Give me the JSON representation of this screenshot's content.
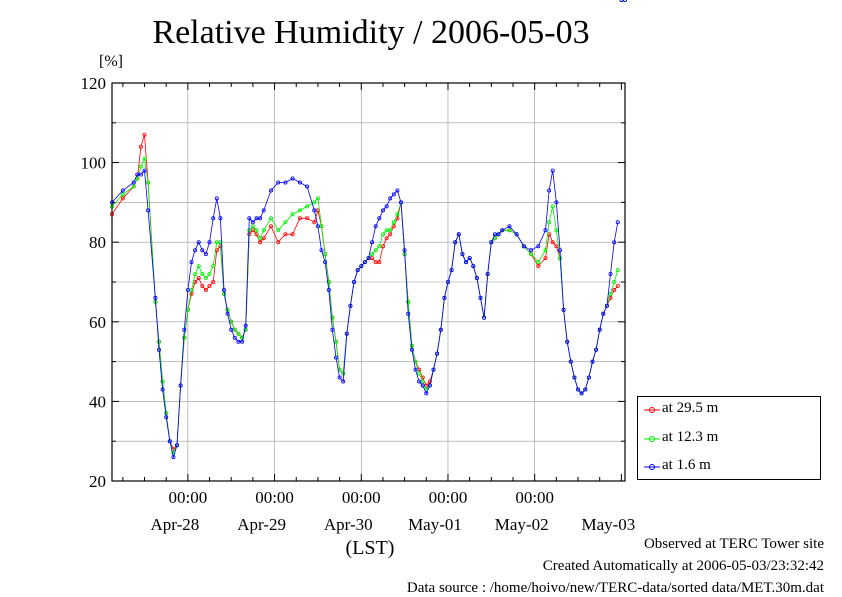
{
  "chart_data": {
    "type": "line",
    "title": "Relative Humidity / 2006-05-03",
    "y_unit": "[%]",
    "x_unit": "(LST)",
    "ylim": [
      20,
      120
    ],
    "y_ticks": [
      20,
      40,
      60,
      80,
      100,
      120
    ],
    "x_range_hours": [
      0,
      142
    ],
    "time_labels": [
      {
        "hour": 21,
        "label": "00:00"
      },
      {
        "hour": 45,
        "label": "00:00"
      },
      {
        "hour": 69,
        "label": "00:00"
      },
      {
        "hour": 93,
        "label": "00:00"
      },
      {
        "hour": 117,
        "label": "00:00"
      }
    ],
    "date_labels": [
      {
        "hour": 21,
        "label": "Apr-28"
      },
      {
        "hour": 45,
        "label": "Apr-29"
      },
      {
        "hour": 69,
        "label": "Apr-30"
      },
      {
        "hour": 93,
        "label": "May-01"
      },
      {
        "hour": 117,
        "label": "May-02"
      },
      {
        "hour": 141,
        "label": "May-03"
      }
    ],
    "grid": true,
    "legend_position": "right",
    "x_hours": [
      0,
      3,
      6,
      7,
      8,
      9,
      10,
      12,
      13,
      14,
      15,
      16,
      17,
      18,
      19,
      20,
      21,
      22,
      23,
      24,
      25,
      26,
      27,
      28,
      29,
      30,
      31,
      32,
      33,
      34,
      35,
      36,
      37,
      38,
      39,
      40,
      41,
      42,
      44,
      46,
      48,
      50,
      52,
      54,
      56,
      57,
      58,
      59,
      60,
      61,
      62,
      63,
      64,
      65,
      66,
      67,
      68,
      69,
      70,
      71,
      72,
      73,
      74,
      75,
      76,
      77,
      78,
      79,
      80,
      81,
      82,
      83,
      84,
      85,
      86,
      87,
      88,
      89,
      90,
      91,
      92,
      93,
      94,
      95,
      96,
      97,
      98,
      99,
      100,
      101,
      102,
      103,
      104,
      105,
      106,
      107,
      108,
      110,
      112,
      114,
      116,
      118,
      120,
      121,
      122,
      123,
      124,
      125,
      126,
      127,
      128,
      129,
      130,
      131,
      132,
      133,
      134,
      135,
      136,
      137,
      138,
      139,
      140,
      141,
      142
    ],
    "series": [
      {
        "name": "at 29.5 m",
        "color": "#ff0000",
        "values": [
          87,
          91,
          94,
          96,
          104,
          107,
          95,
          65,
          55,
          45,
          37,
          30,
          28,
          29,
          44,
          56,
          63,
          67,
          70,
          71,
          69,
          68,
          69,
          70,
          78,
          79,
          67,
          63,
          60,
          58,
          57,
          56,
          58,
          82,
          83,
          82,
          80,
          81,
          84,
          80,
          82,
          82,
          86,
          86,
          85,
          88,
          84,
          77,
          70,
          61,
          55,
          48,
          47,
          57,
          64,
          70,
          73,
          74,
          75,
          76,
          76,
          75,
          75,
          79,
          81,
          82,
          84,
          86,
          90,
          77,
          65,
          54,
          50,
          48,
          46,
          44,
          45,
          48,
          52,
          58,
          66,
          70,
          73,
          80,
          82,
          77,
          75,
          76,
          74,
          71,
          66,
          61,
          72,
          80,
          81,
          82,
          83,
          83,
          82,
          79,
          77,
          74,
          76,
          82,
          80,
          79,
          76,
          63,
          55,
          50,
          46,
          43,
          42,
          43,
          46,
          50,
          53,
          58,
          62,
          64,
          66,
          68,
          69
        ]
      },
      {
        "name": "at 12.3 m",
        "color": "#00ee00",
        "values": [
          89,
          92,
          94,
          96,
          99,
          101,
          95,
          65,
          55,
          45,
          37,
          30,
          27,
          29,
          44,
          56,
          63,
          68,
          72,
          74,
          72,
          71,
          72,
          74,
          80,
          80,
          67,
          63,
          60,
          58,
          57,
          56,
          58,
          83,
          84,
          83,
          81,
          83,
          86,
          83,
          85,
          87,
          88,
          89,
          90,
          91,
          84,
          77,
          70,
          61,
          55,
          48,
          47,
          57,
          64,
          70,
          73,
          74,
          75,
          76,
          77,
          78,
          79,
          82,
          83,
          83,
          85,
          87,
          90,
          77,
          65,
          54,
          50,
          47,
          45,
          43,
          44,
          48,
          52,
          58,
          66,
          70,
          73,
          80,
          82,
          77,
          75,
          76,
          74,
          71,
          66,
          61,
          72,
          80,
          81,
          82,
          83,
          83,
          82,
          79,
          77,
          75,
          78,
          85,
          89,
          83,
          76,
          63,
          55,
          50,
          46,
          43,
          42,
          43,
          46,
          50,
          53,
          58,
          62,
          64,
          67,
          70,
          73
        ]
      },
      {
        "name": "at 1.6 m",
        "color": "#0000ff",
        "values": [
          90,
          93,
          95,
          97,
          97,
          98,
          88,
          66,
          53,
          43,
          36,
          30,
          26,
          29,
          44,
          58,
          68,
          75,
          78,
          80,
          78,
          77,
          80,
          86,
          91,
          86,
          68,
          62,
          58,
          56,
          55,
          55,
          59,
          86,
          85,
          86,
          86,
          88,
          93,
          95,
          95,
          96,
          95,
          94,
          88,
          84,
          78,
          75,
          68,
          58,
          51,
          46,
          45,
          57,
          64,
          70,
          73,
          74,
          75,
          76,
          80,
          84,
          86,
          88,
          89,
          91,
          92,
          93,
          90,
          78,
          62,
          53,
          48,
          45,
          44,
          42,
          44,
          48,
          52,
          58,
          66,
          70,
          73,
          80,
          82,
          77,
          75,
          76,
          74,
          71,
          66,
          61,
          72,
          80,
          82,
          82,
          83,
          84,
          82,
          79,
          78,
          79,
          83,
          93,
          98,
          90,
          78,
          63,
          55,
          50,
          46,
          43,
          42,
          43,
          46,
          50,
          53,
          58,
          62,
          64,
          72,
          80,
          85
        ]
      }
    ]
  },
  "footer": {
    "line1": "Observed at TERC Tower site",
    "line2": "Created Automatically at 2006-05-03/23:32:42",
    "line3": "Data source : /home/hoivo/new/TERC-data/sorted  data/MET.30m.dat"
  }
}
